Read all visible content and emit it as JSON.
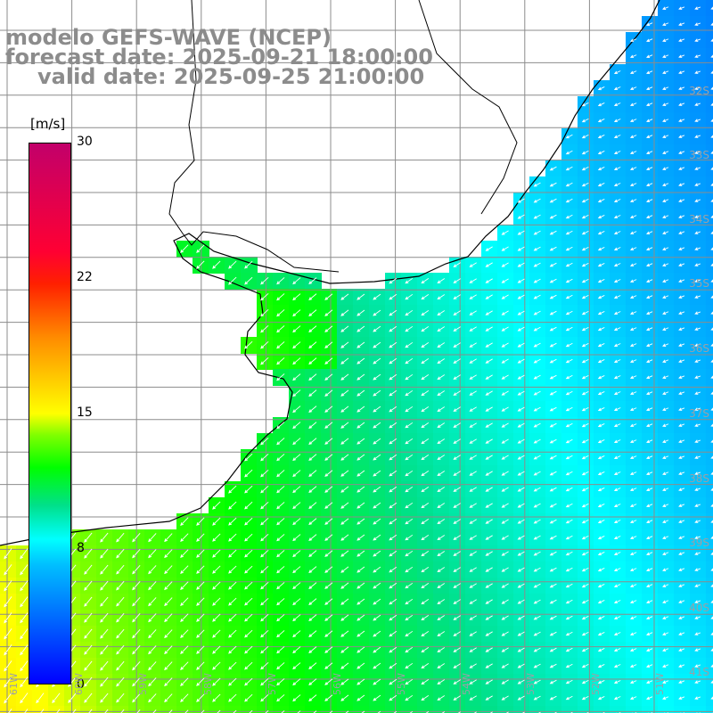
{
  "title": {
    "model": "modelo GEFS-WAVE (NCEP)",
    "forecast": "forecast date: 2025-09-21 18:00:00",
    "valid": "valid date: 2025-09-25 21:00:00"
  },
  "colorbar": {
    "unit": "[m/s]",
    "min": 0,
    "max": 30,
    "ticks": [
      "30",
      "22",
      "15",
      "8",
      "0"
    ],
    "tick_values": [
      30,
      22,
      15,
      8,
      0
    ]
  },
  "lat_labels": [
    "32S",
    "33S",
    "34S",
    "35S",
    "36S",
    "37S",
    "38S",
    "39S",
    "40S",
    "41S"
  ],
  "lon_labels": [
    "61W",
    "60W",
    "59W",
    "58W",
    "57W",
    "56W",
    "55W",
    "54W",
    "53W",
    "52W",
    "51W"
  ],
  "colors": {
    "land": "#ffffff",
    "grid": "#8c8c8c",
    "coast": "#000000",
    "arrow": "#ffffff",
    "title": "#8c8c8c"
  }
}
